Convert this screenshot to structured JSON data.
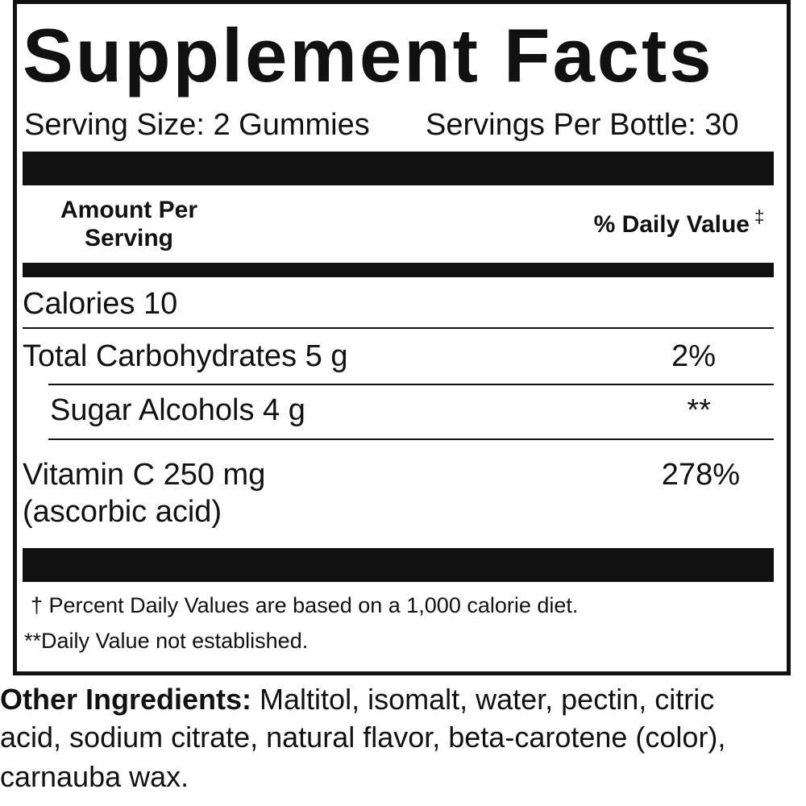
{
  "title": "Supplement Facts",
  "serving": {
    "size": "Serving Size: 2 Gummies",
    "per_container": "Servings Per Bottle: 30"
  },
  "header": {
    "amount_lines": [
      "Amount Per",
      "Serving"
    ],
    "daily_value": "% Daily Value",
    "daily_value_mark": "‡"
  },
  "rows": [
    {
      "name_lines": [
        "Calories 10"
      ],
      "dv": null
    },
    {
      "name_lines": [
        "Total Carbohydrates 5 g"
      ],
      "dv": "2%"
    },
    {
      "name_lines": [
        "Sugar Alcohols 4 g"
      ],
      "dv": "**"
    },
    {
      "name_lines": [
        "Vitamin C 250 mg",
        "(ascorbic acid)"
      ],
      "dv": "278%"
    }
  ],
  "footnotes": [
    "† Percent Daily Values are based on a 1,000 calorie diet.",
    "**Daily Value not established."
  ],
  "other_ingredients": {
    "label": "Other Ingredients:",
    "lines": [
      " Maltitol, isomalt, water, pectin, citric",
      "acid, sodium citrate, natural flavor, beta-carotene (color),",
      "carnauba wax."
    ]
  }
}
